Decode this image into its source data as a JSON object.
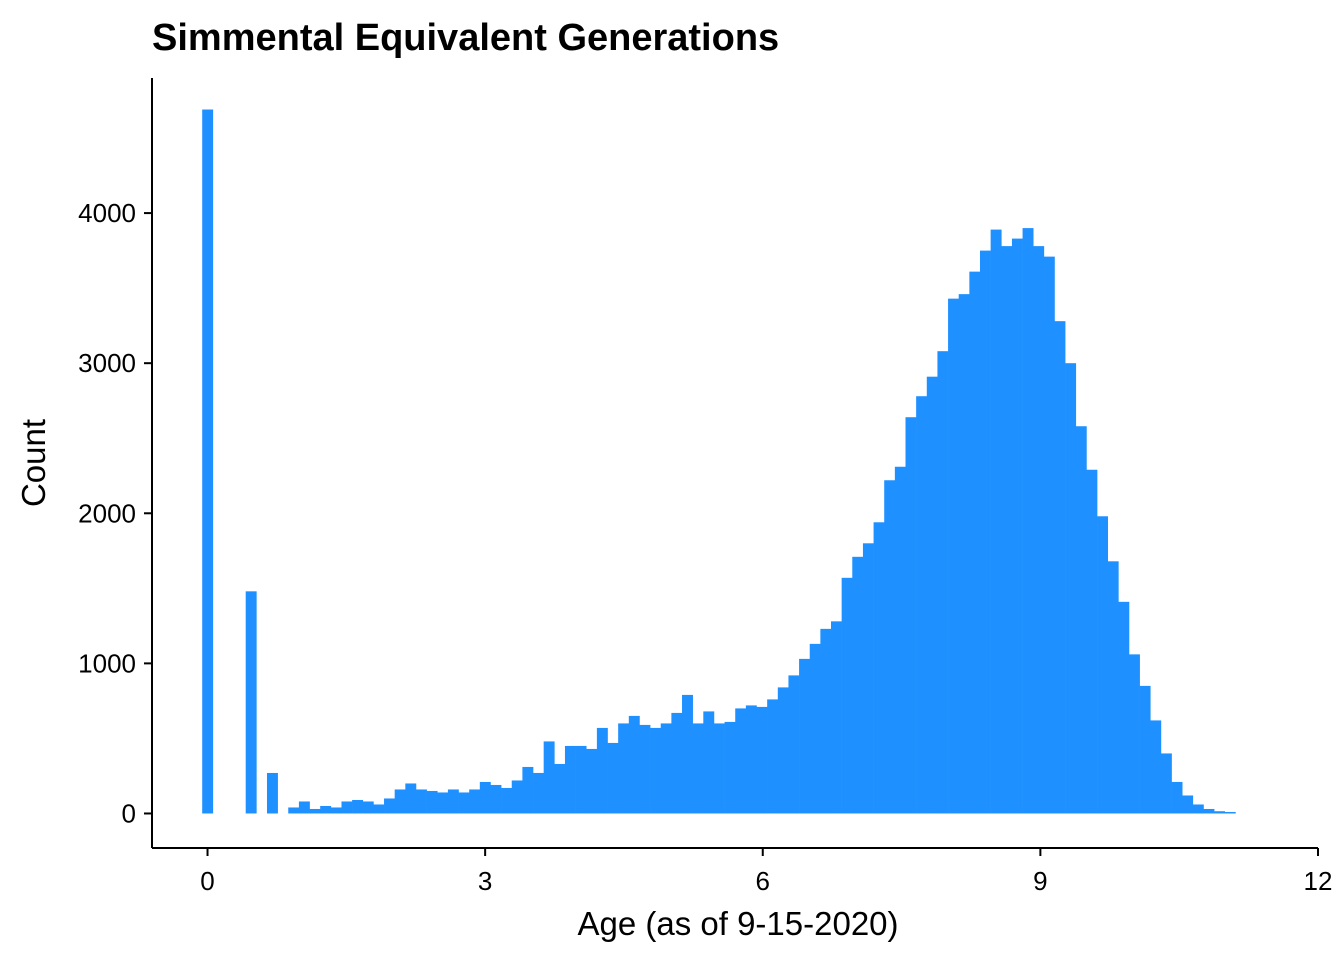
{
  "chart_data": {
    "type": "bar",
    "title": "Simmental Equivalent Generations",
    "xlabel": "Age (as of 9-15-2020)",
    "ylabel": "Count",
    "xlim": [
      -0.6,
      12
    ],
    "ylim": [
      -230,
      4900
    ],
    "x_ticks": [
      0,
      3,
      6,
      9,
      12
    ],
    "y_ticks": [
      0,
      1000,
      2000,
      3000,
      4000
    ],
    "bin_width": 0.115,
    "bar_color": "#1E90FF",
    "grid": false,
    "legend": "none",
    "x": [
      0.0,
      0.47,
      0.7,
      0.93,
      1.045,
      1.16,
      1.275,
      1.39,
      1.505,
      1.62,
      1.735,
      1.85,
      1.965,
      2.08,
      2.195,
      2.31,
      2.425,
      2.54,
      2.655,
      2.77,
      2.885,
      3.0,
      3.115,
      3.23,
      3.345,
      3.46,
      3.575,
      3.69,
      3.805,
      3.92,
      4.035,
      4.15,
      4.265,
      4.38,
      4.495,
      4.61,
      4.725,
      4.84,
      4.955,
      5.07,
      5.185,
      5.3,
      5.415,
      5.53,
      5.645,
      5.76,
      5.875,
      5.99,
      6.105,
      6.22,
      6.335,
      6.45,
      6.565,
      6.68,
      6.795,
      6.91,
      7.025,
      7.14,
      7.255,
      7.37,
      7.485,
      7.6,
      7.715,
      7.83,
      7.945,
      8.06,
      8.175,
      8.29,
      8.405,
      8.52,
      8.635,
      8.75,
      8.865,
      8.98,
      9.095,
      9.21,
      9.325,
      9.44,
      9.555,
      9.67,
      9.785,
      9.9,
      10.015,
      10.13,
      10.245,
      10.36,
      10.475,
      10.59,
      10.705,
      10.82,
      10.935,
      11.05
    ],
    "values": [
      4690,
      1480,
      270,
      40,
      80,
      30,
      50,
      40,
      80,
      90,
      80,
      60,
      100,
      160,
      200,
      160,
      150,
      140,
      160,
      140,
      160,
      210,
      190,
      170,
      220,
      310,
      270,
      480,
      330,
      450,
      450,
      430,
      570,
      470,
      600,
      650,
      590,
      570,
      600,
      670,
      790,
      600,
      680,
      600,
      610,
      700,
      720,
      710,
      760,
      840,
      920,
      1030,
      1130,
      1230,
      1280,
      1570,
      1710,
      1800,
      1940,
      2220,
      2310,
      2640,
      2780,
      2910,
      3080,
      3430,
      3460,
      3610,
      3750,
      3890,
      3780,
      3830,
      3900,
      3780,
      3710,
      3280,
      3000,
      2580,
      2290,
      1980,
      1680,
      1410,
      1060,
      850,
      620,
      400,
      210,
      120,
      60,
      30,
      15,
      10
    ]
  }
}
